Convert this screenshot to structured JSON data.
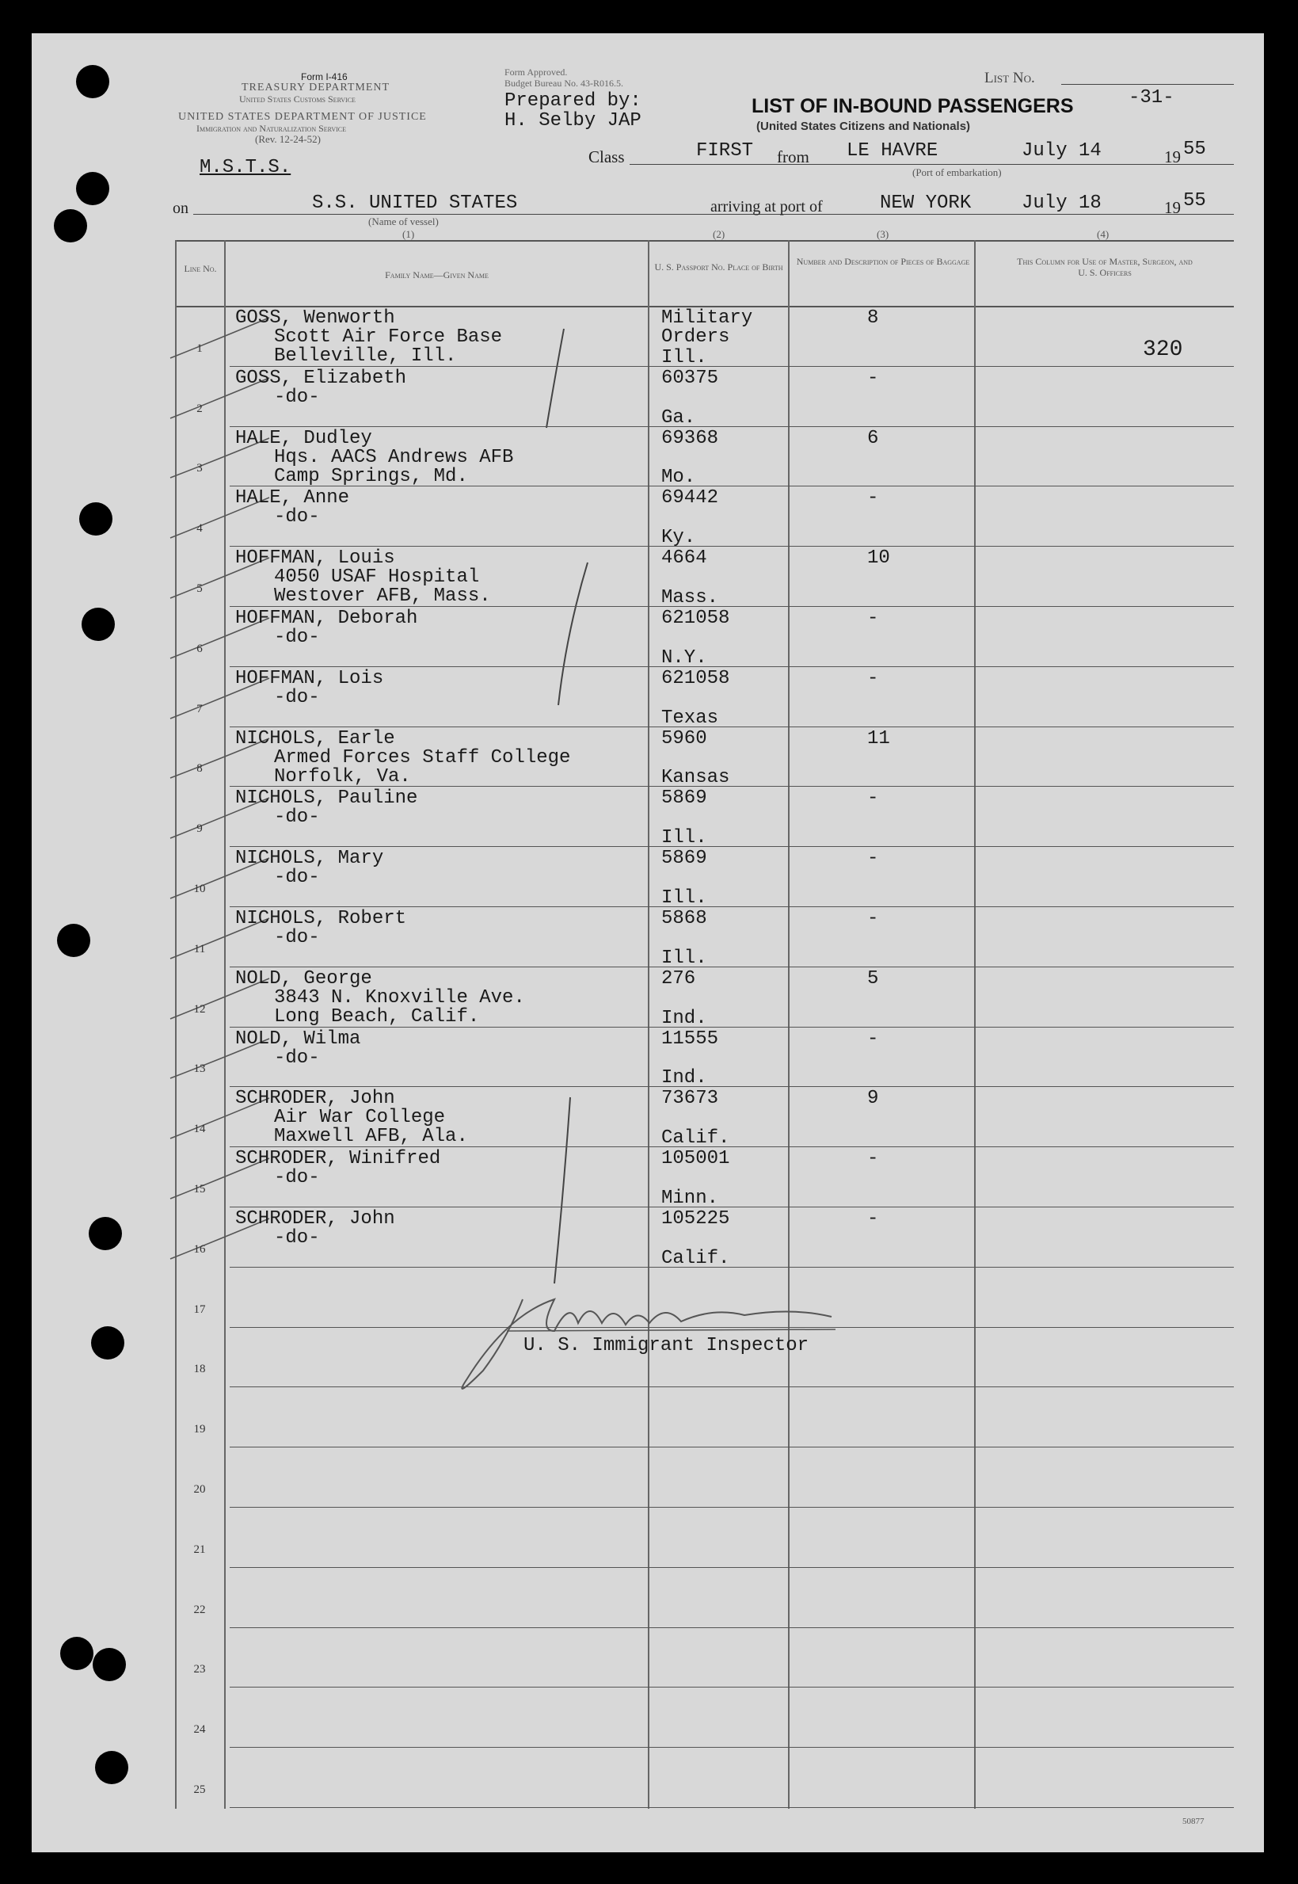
{
  "form": {
    "form_no": "Form I-416",
    "dept1": "TREASURY DEPARTMENT",
    "dept1_sub": "United States Customs Service",
    "dept2": "UNITED STATES DEPARTMENT OF JUSTICE",
    "dept2_sub": "Immigration and Naturalization Service",
    "rev": "(Rev. 12-24-52)",
    "approved": "Form Approved.",
    "budget": "Budget Bureau No. 43-R016.5.",
    "prepared_by_label": "Prepared by:",
    "prepared_by": "H. Selby JAP",
    "list_no_label": "List No.",
    "list_no": "-31-",
    "title": "LIST OF IN-BOUND PASSENGERS",
    "subtitle": "(United States Citizens and Nationals)",
    "msts": "M.S.T.S.",
    "class_label": "Class",
    "class": "FIRST",
    "from_label": "from",
    "from_port": "LE HAVRE",
    "depart_date": "July 14",
    "depart_year_prefix": "19",
    "depart_year_suffix": "55",
    "port_caption": "(Port of embarkation)",
    "on_label": "on",
    "vessel": "S.S. UNITED STATES",
    "vessel_caption": "(Name of vessel)",
    "arriving_label": "arriving at port of",
    "arrival_port": "NEW YORK",
    "arrival_date": "July 18",
    "arrival_year_prefix": "19",
    "arrival_year_suffix": "55",
    "col_nums": [
      "(1)",
      "(2)",
      "(3)",
      "(4)"
    ],
    "annotation_320": "320",
    "footer_code": "50877",
    "inspector_label": "U. S. Immigrant Inspector"
  },
  "table": {
    "headers": {
      "line": "Line No.",
      "name": "Family Name—Given Name",
      "passport": "U. S. Passport No. Place of Birth",
      "baggage": "Number and Description of Pieces of Baggage",
      "officers": "This Column for Use of Master, Surgeon, and U. S. Officers"
    },
    "rows": [
      {
        "line": "1",
        "name": "GOSS, Wenworth",
        "addr": [
          "Scott Air Force Base",
          "Belleville, Ill."
        ],
        "passport": "Military\nOrders",
        "birth": "Ill.",
        "baggage": "8"
      },
      {
        "line": "2",
        "name": "GOSS, Elizabeth",
        "addr": [
          "-do-"
        ],
        "passport": "60375",
        "birth": "Ga.",
        "baggage": "-"
      },
      {
        "line": "3",
        "name": "HALE, Dudley",
        "addr": [
          "Hqs. AACS Andrews AFB",
          "Camp Springs, Md."
        ],
        "passport": "69368",
        "birth": "Mo.",
        "baggage": "6"
      },
      {
        "line": "4",
        "name": "HALE, Anne",
        "addr": [
          "-do-"
        ],
        "passport": "69442",
        "birth": "Ky.",
        "baggage": "-"
      },
      {
        "line": "5",
        "name": "HOFFMAN, Louis",
        "addr": [
          "4050 USAF Hospital",
          "Westover AFB, Mass."
        ],
        "passport": "4664",
        "birth": "Mass.",
        "baggage": "10"
      },
      {
        "line": "6",
        "name": "HOFFMAN, Deborah",
        "addr": [
          "-do-"
        ],
        "passport": "621058",
        "birth": "N.Y.",
        "baggage": "-"
      },
      {
        "line": "7",
        "name": "HOFFMAN, Lois",
        "addr": [
          "-do-"
        ],
        "passport": "621058",
        "birth": "Texas",
        "baggage": "-"
      },
      {
        "line": "8",
        "name": "NICHOLS, Earle",
        "addr": [
          "Armed Forces Staff College",
          "Norfolk, Va."
        ],
        "passport": "5960",
        "birth": "Kansas",
        "baggage": "11"
      },
      {
        "line": "9",
        "name": "NICHOLS, Pauline",
        "addr": [
          "-do-"
        ],
        "passport": "5869",
        "birth": "Ill.",
        "baggage": "-"
      },
      {
        "line": "10",
        "name": "NICHOLS, Mary",
        "addr": [
          "-do-"
        ],
        "passport": "5869",
        "birth": "Ill.",
        "baggage": "-"
      },
      {
        "line": "11",
        "name": "NICHOLS, Robert",
        "addr": [
          "-do-"
        ],
        "passport": "5868",
        "birth": "Ill.",
        "baggage": "-"
      },
      {
        "line": "12",
        "name": "NOLD, George",
        "addr": [
          "3843 N. Knoxville Ave.",
          "Long Beach, Calif."
        ],
        "passport": "276",
        "birth": "Ind.",
        "baggage": "5"
      },
      {
        "line": "13",
        "name": "NOLD, Wilma",
        "addr": [
          "-do-"
        ],
        "passport": "11555",
        "birth": "Ind.",
        "baggage": "-"
      },
      {
        "line": "14",
        "name": "SCHRODER, John",
        "addr": [
          "Air War College",
          "Maxwell AFB, Ala."
        ],
        "passport": "73673",
        "birth": "Calif.",
        "baggage": "9"
      },
      {
        "line": "15",
        "name": "SCHRODER, Winifred",
        "addr": [
          "-do-"
        ],
        "passport": "105001",
        "birth": "Minn.",
        "baggage": "-"
      },
      {
        "line": "16",
        "name": "SCHRODER, John",
        "addr": [
          "-do-"
        ],
        "passport": "105225",
        "birth": "Calif.",
        "baggage": "-"
      },
      {
        "line": "17"
      },
      {
        "line": "18"
      },
      {
        "line": "19"
      },
      {
        "line": "20"
      },
      {
        "line": "21"
      },
      {
        "line": "22"
      },
      {
        "line": "23"
      },
      {
        "line": "24"
      },
      {
        "line": "25"
      }
    ]
  }
}
